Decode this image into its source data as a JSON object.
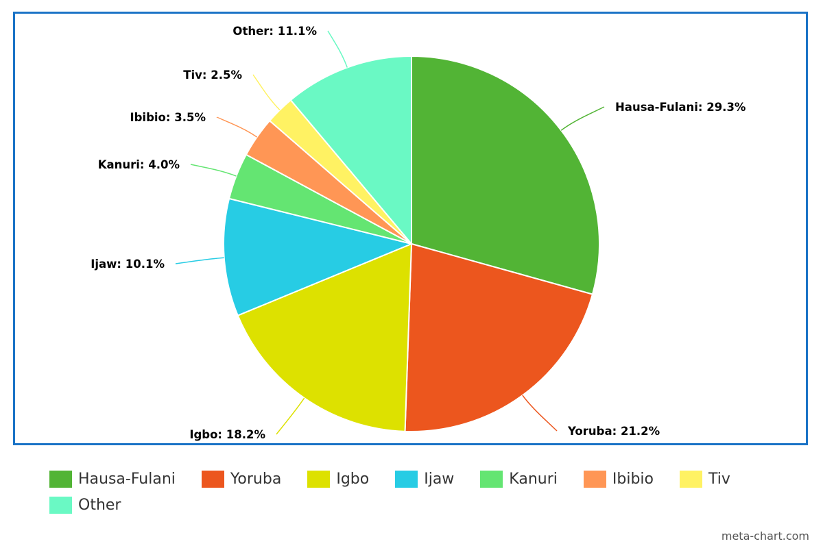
{
  "watermark": "meta-chart.com",
  "chart_data": {
    "type": "pie",
    "title": "",
    "categories": [
      "Hausa-Fulani",
      "Yoruba",
      "Igbo",
      "Ijaw",
      "Kanuri",
      "Ibibio",
      "Tiv",
      "Other"
    ],
    "values": [
      29.3,
      21.2,
      18.2,
      10.1,
      4.0,
      3.5,
      2.5,
      11.1
    ],
    "labels": [
      "Hausa-Fulani: 29.3%",
      "Yoruba: 21.2%",
      "Igbo: 18.2%",
      "Ijaw: 10.1%",
      "Kanuri: 4.0%",
      "Ibibio: 3.5%",
      "Tiv: 2.5%",
      "Other: 11.1%"
    ],
    "colors": [
      "#52b435",
      "#ec561e",
      "#dde100",
      "#27cce4",
      "#64e572",
      "#ff9655",
      "#fff263",
      "#6af9c4"
    ],
    "legend_position": "bottom",
    "start_angle": "top, clockwise",
    "frame_color": "#1a73c6"
  }
}
